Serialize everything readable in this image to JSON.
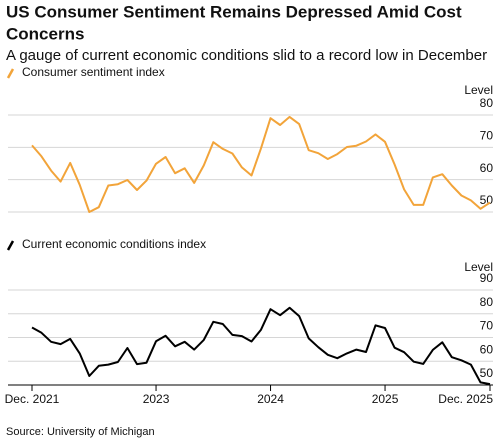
{
  "title_lines": [
    "US Consumer Sentiment Remains Depressed Amid Cost",
    "Concerns"
  ],
  "subtitle": "A gauge of current economic conditions slid to a record low in December",
  "source": "Source: University of Michigan",
  "chart_data": [
    {
      "type": "line",
      "y_label": "Level",
      "ylim": [
        50,
        80
      ],
      "yticks": [
        50,
        60,
        70,
        80
      ],
      "grid": true,
      "series": [
        {
          "name": "Consumer sentiment index",
          "color": "#f2a43a",
          "values": [
            70.6,
            67.2,
            62.8,
            59.4,
            65.2,
            58.4,
            50.0,
            51.5,
            58.2,
            58.6,
            59.9,
            56.8,
            59.7,
            64.9,
            67.0,
            62.0,
            63.5,
            59.0,
            64.4,
            71.6,
            69.5,
            68.1,
            63.8,
            61.3,
            69.7,
            79.0,
            76.9,
            79.4,
            77.2,
            69.1,
            68.2,
            66.4,
            67.9,
            70.1,
            70.5,
            71.8,
            74.0,
            71.7,
            64.7,
            57.0,
            52.2,
            52.2,
            60.7,
            61.7,
            58.2,
            55.1,
            53.6,
            51.0,
            52.9
          ]
        }
      ]
    },
    {
      "type": "line",
      "y_label": "Level",
      "ylim": [
        50,
        90
      ],
      "yticks": [
        50,
        60,
        70,
        80,
        90
      ],
      "grid": true,
      "categories": [
        "Dec. 2021",
        null,
        null,
        null,
        null,
        null,
        null,
        null,
        null,
        null,
        null,
        null,
        null,
        "2023",
        null,
        null,
        null,
        null,
        null,
        null,
        null,
        null,
        null,
        null,
        null,
        "2024",
        null,
        null,
        null,
        null,
        null,
        null,
        null,
        null,
        null,
        null,
        null,
        "2025",
        null,
        null,
        null,
        null,
        null,
        null,
        null,
        null,
        null,
        null,
        "Dec. 2025"
      ],
      "series": [
        {
          "name": "Current economic conditions index",
          "color": "#000000",
          "values": [
            74.2,
            72.0,
            68.2,
            67.2,
            69.4,
            63.3,
            53.8,
            58.1,
            58.6,
            59.7,
            65.6,
            58.8,
            59.4,
            68.4,
            70.7,
            66.3,
            68.2,
            64.9,
            69.0,
            76.6,
            75.7,
            71.1,
            70.6,
            68.3,
            73.3,
            81.9,
            79.4,
            82.5,
            79.0,
            69.6,
            65.9,
            62.7,
            61.3,
            63.3,
            64.9,
            63.9,
            75.1,
            74.0,
            65.7,
            63.8,
            59.8,
            58.9,
            64.8,
            68.0,
            61.7,
            60.4,
            58.6,
            51.1,
            50.4
          ]
        }
      ]
    }
  ]
}
